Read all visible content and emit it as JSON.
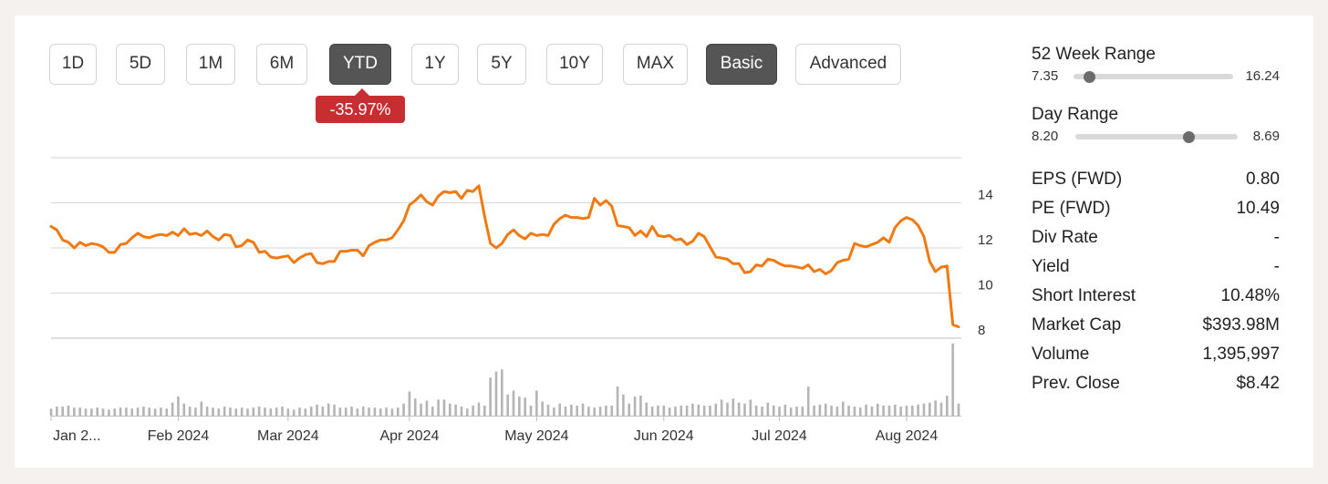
{
  "range_buttons": [
    {
      "label": "1D",
      "active": false
    },
    {
      "label": "5D",
      "active": false
    },
    {
      "label": "1M",
      "active": false
    },
    {
      "label": "6M",
      "active": false
    },
    {
      "label": "YTD",
      "active": true
    },
    {
      "label": "1Y",
      "active": false
    },
    {
      "label": "5Y",
      "active": false
    },
    {
      "label": "10Y",
      "active": false
    },
    {
      "label": "MAX",
      "active": false
    }
  ],
  "mode_buttons": [
    {
      "label": "Basic",
      "active": true
    },
    {
      "label": "Advanced",
      "active": false
    }
  ],
  "change_badge": "-35.97%",
  "colors": {
    "accent": "#f07a12",
    "badge": "#c62e32",
    "volume": "#b4b4b4",
    "active_button": "#555555"
  },
  "stats": {
    "week52": {
      "title": "52 Week Range",
      "low": "7.35",
      "high": "16.24",
      "position": 0.1
    },
    "day": {
      "title": "Day Range",
      "low": "8.20",
      "high": "8.69",
      "position": 0.7
    },
    "rows": [
      {
        "label": "EPS (FWD)",
        "value": "0.80"
      },
      {
        "label": "PE (FWD)",
        "value": "10.49"
      },
      {
        "label": "Div Rate",
        "value": "-"
      },
      {
        "label": "Yield",
        "value": "-"
      },
      {
        "label": "Short Interest",
        "value": "10.48%"
      },
      {
        "label": "Market Cap",
        "value": "$393.98M"
      },
      {
        "label": "Volume",
        "value": "1,395,997"
      },
      {
        "label": "Prev. Close",
        "value": "$8.42"
      }
    ]
  },
  "chart_data": {
    "type": "line",
    "title": "",
    "xlabel": "",
    "ylabel": "",
    "ylim": [
      8,
      16
    ],
    "y_ticks": [
      8,
      10,
      12,
      14
    ],
    "grid": true,
    "x_tick_labels": [
      {
        "label": "Jan 2...",
        "index": 0
      },
      {
        "label": "Feb 2024",
        "index": 22
      },
      {
        "label": "Mar 2024",
        "index": 41
      },
      {
        "label": "Apr 2024",
        "index": 62
      },
      {
        "label": "May 2024",
        "index": 84
      },
      {
        "label": "Jun 2024",
        "index": 106
      },
      {
        "label": "Jul 2024",
        "index": 126
      },
      {
        "label": "Aug 2024",
        "index": 148
      }
    ],
    "price": [
      12.95,
      12.8,
      12.35,
      12.25,
      12.0,
      12.25,
      12.1,
      12.2,
      12.15,
      12.05,
      11.8,
      11.8,
      12.15,
      12.2,
      12.45,
      12.65,
      12.5,
      12.45,
      12.55,
      12.6,
      12.55,
      12.7,
      12.55,
      12.85,
      12.6,
      12.65,
      12.55,
      12.75,
      12.5,
      12.35,
      12.6,
      12.55,
      12.05,
      12.1,
      12.35,
      12.25,
      11.8,
      11.85,
      11.6,
      11.55,
      11.6,
      11.65,
      11.35,
      11.55,
      11.7,
      11.75,
      11.35,
      11.3,
      11.4,
      11.4,
      11.85,
      11.85,
      11.9,
      11.9,
      11.65,
      12.1,
      12.25,
      12.35,
      12.35,
      12.45,
      12.8,
      13.2,
      13.9,
      14.1,
      14.35,
      14.05,
      13.9,
      14.3,
      14.5,
      14.45,
      14.5,
      14.2,
      14.55,
      14.5,
      14.75,
      13.4,
      12.2,
      12.0,
      12.2,
      12.6,
      12.8,
      12.55,
      12.4,
      12.65,
      12.55,
      12.6,
      12.55,
      13.05,
      13.3,
      13.45,
      13.35,
      13.35,
      13.3,
      13.35,
      14.2,
      13.9,
      14.1,
      13.85,
      13.0,
      12.95,
      12.9,
      12.55,
      12.75,
      12.5,
      12.95,
      12.55,
      12.5,
      12.55,
      12.35,
      12.4,
      12.15,
      12.3,
      12.65,
      12.5,
      12.05,
      11.6,
      11.55,
      11.5,
      11.3,
      11.3,
      10.9,
      10.95,
      11.25,
      11.2,
      11.5,
      11.45,
      11.3,
      11.2,
      11.2,
      11.15,
      11.1,
      11.25,
      10.95,
      11.05,
      10.85,
      11.0,
      11.35,
      11.45,
      11.5,
      12.2,
      12.1,
      12.05,
      12.15,
      12.25,
      12.45,
      12.25,
      12.9,
      13.2,
      13.35,
      13.25,
      13.0,
      12.5,
      11.4,
      10.95,
      11.15,
      11.2,
      8.6,
      8.5
    ],
    "volume": [
      0.07,
      0.09,
      0.09,
      0.1,
      0.08,
      0.08,
      0.07,
      0.07,
      0.08,
      0.07,
      0.06,
      0.07,
      0.08,
      0.08,
      0.07,
      0.08,
      0.09,
      0.08,
      0.07,
      0.08,
      0.07,
      0.13,
      0.19,
      0.12,
      0.09,
      0.08,
      0.14,
      0.09,
      0.08,
      0.07,
      0.09,
      0.08,
      0.07,
      0.08,
      0.07,
      0.08,
      0.09,
      0.08,
      0.07,
      0.08,
      0.09,
      0.07,
      0.06,
      0.08,
      0.07,
      0.09,
      0.11,
      0.09,
      0.12,
      0.11,
      0.08,
      0.08,
      0.09,
      0.07,
      0.09,
      0.08,
      0.08,
      0.07,
      0.08,
      0.07,
      0.08,
      0.12,
      0.24,
      0.17,
      0.12,
      0.15,
      0.09,
      0.16,
      0.16,
      0.12,
      0.11,
      0.09,
      0.07,
      0.1,
      0.13,
      0.1,
      0.38,
      0.44,
      0.46,
      0.21,
      0.25,
      0.19,
      0.18,
      0.1,
      0.25,
      0.14,
      0.11,
      0.08,
      0.12,
      0.09,
      0.11,
      0.1,
      0.12,
      0.09,
      0.08,
      0.09,
      0.1,
      0.1,
      0.29,
      0.21,
      0.12,
      0.19,
      0.2,
      0.13,
      0.09,
      0.1,
      0.1,
      0.08,
      0.09,
      0.1,
      0.1,
      0.12,
      0.11,
      0.1,
      0.1,
      0.12,
      0.16,
      0.13,
      0.17,
      0.13,
      0.12,
      0.16,
      0.1,
      0.09,
      0.13,
      0.1,
      0.09,
      0.11,
      0.08,
      0.09,
      0.09,
      0.29,
      0.1,
      0.11,
      0.12,
      0.1,
      0.09,
      0.14,
      0.1,
      0.09,
      0.08,
      0.11,
      0.09,
      0.12,
      0.1,
      0.1,
      0.11,
      0.09,
      0.1,
      0.1,
      0.11,
      0.12,
      0.13,
      0.15,
      0.13,
      0.2,
      0.72,
      0.12
    ]
  }
}
